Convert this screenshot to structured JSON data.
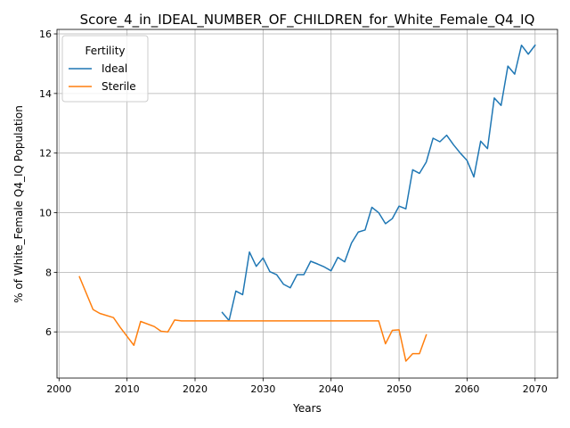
{
  "chart_data": {
    "type": "line",
    "title": "Score_4_in_IDEAL_NUMBER_OF_CHILDREN_for_White_Female_Q4_IQ",
    "xlabel": "Years",
    "ylabel": "% of White_Female Q4_IQ Population",
    "xlim": [
      1999.7,
      2073.3
    ],
    "ylim": [
      4.45,
      16.15
    ],
    "xticks": [
      2000,
      2010,
      2020,
      2030,
      2040,
      2050,
      2060,
      2070
    ],
    "yticks": [
      6,
      8,
      10,
      12,
      14,
      16
    ],
    "grid": true,
    "legend": {
      "title": "Fertility",
      "placement": "top-left"
    },
    "series": [
      {
        "name": "Ideal",
        "color": "#1f77b4",
        "x": [
          2024,
          2025,
          2026,
          2027,
          2028,
          2029,
          2030,
          2031,
          2032,
          2033,
          2034,
          2035,
          2036,
          2037,
          2038,
          2039,
          2040,
          2041,
          2042,
          2043,
          2044,
          2045,
          2046,
          2047,
          2048,
          2049,
          2050,
          2051,
          2052,
          2053,
          2054,
          2055,
          2056,
          2057,
          2058,
          2059,
          2060,
          2061,
          2062,
          2063,
          2064,
          2065,
          2066,
          2067,
          2068,
          2069,
          2070
        ],
        "y": [
          6.65,
          6.38,
          7.37,
          7.25,
          8.68,
          8.2,
          8.48,
          8.02,
          7.92,
          7.6,
          7.48,
          7.92,
          7.92,
          8.37,
          8.28,
          8.18,
          8.05,
          8.5,
          8.35,
          8.98,
          9.35,
          9.42,
          10.18,
          10.0,
          9.63,
          9.8,
          10.22,
          10.13,
          11.44,
          11.32,
          11.7,
          12.5,
          12.38,
          12.6,
          12.28,
          12.0,
          11.75,
          11.2,
          12.4,
          12.15,
          13.85,
          13.6,
          14.92,
          14.65,
          15.62,
          15.32,
          15.62
        ]
      },
      {
        "name": "Sterile",
        "color": "#ff7f0e",
        "x": [
          2003,
          2005,
          2006,
          2008,
          2009,
          2011,
          2012,
          2014,
          2015,
          2016,
          2017,
          2018,
          2020,
          2025,
          2030,
          2040,
          2045,
          2047,
          2048,
          2049,
          2050,
          2051,
          2052,
          2053,
          2054
        ],
        "y": [
          7.85,
          6.75,
          6.62,
          6.48,
          6.15,
          5.55,
          6.35,
          6.18,
          6.02,
          6.0,
          6.4,
          6.37,
          6.37,
          6.37,
          6.37,
          6.37,
          6.37,
          6.37,
          5.6,
          6.05,
          6.07,
          5.02,
          5.27,
          5.27,
          5.9
        ]
      }
    ]
  }
}
